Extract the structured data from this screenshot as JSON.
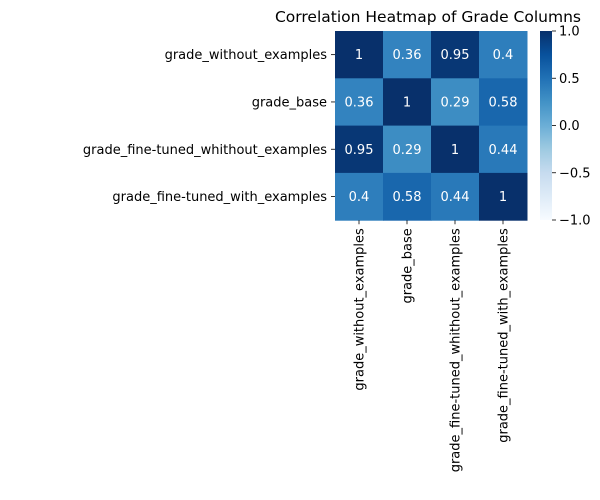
{
  "chart_data": {
    "type": "heatmap",
    "title": "Correlation Heatmap of Grade Columns",
    "xlabel": "",
    "ylabel": "",
    "row_labels": [
      "grade_without_examples",
      "grade_base",
      "grade_fine-tuned_whithout_examples",
      "grade_fine-tuned_with_examples"
    ],
    "col_labels": [
      "grade_without_examples",
      "grade_base",
      "grade_fine-tuned_whithout_examples",
      "grade_fine-tuned_with_examples"
    ],
    "values": [
      [
        1,
        0.36,
        0.95,
        0.4
      ],
      [
        0.36,
        1,
        0.29,
        0.58
      ],
      [
        0.95,
        0.29,
        1,
        0.44
      ],
      [
        0.4,
        0.58,
        0.44,
        1
      ]
    ],
    "value_labels": [
      [
        "1",
        "0.36",
        "0.95",
        "0.4"
      ],
      [
        "0.36",
        "1",
        "0.29",
        "0.58"
      ],
      [
        "0.95",
        "0.29",
        "1",
        "0.44"
      ],
      [
        "0.4",
        "0.58",
        "0.44",
        "1"
      ]
    ],
    "colormap": "Blues",
    "vmin": -1,
    "vmax": 1,
    "colorbar_ticks": [
      1.0,
      0.5,
      0.0,
      -0.5,
      -1.0
    ],
    "colorbar_tick_labels": [
      "1.0",
      "0.5",
      "0.0",
      "−0.5",
      "−1.0"
    ],
    "grid": false,
    "legend": "colorbar-right"
  }
}
